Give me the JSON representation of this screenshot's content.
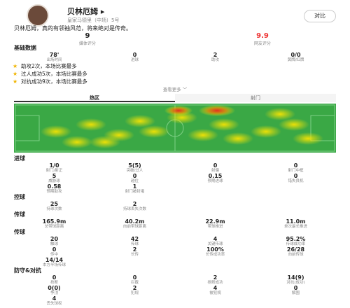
{
  "header": {
    "name": "贝林厄姆 ▸",
    "subtitle": "皇家马德里（中场）5号",
    "compare": "对比",
    "quote": "贝林厄姆，真的有领袖风范，将来绝对是传奇。"
  },
  "ratings": [
    {
      "value": "9",
      "label": "媒体评分"
    },
    {
      "value": "9.9",
      "label": "网友评分"
    }
  ],
  "basic": {
    "title": "基础数据",
    "stats": [
      {
        "value": "78'",
        "label": "出场时间"
      },
      {
        "value": "0",
        "label": "进球"
      },
      {
        "value": "2",
        "label": "助攻"
      },
      {
        "value": "0/0",
        "label": "黄牌/红牌"
      }
    ]
  },
  "highlights": [
    "助攻2次，本场比赛最多",
    "过人成功5次，本场比赛最多",
    "对抗成功9次，本场比赛最多"
  ],
  "more": "查看更多 ﹀",
  "tabs": [
    "热区",
    "射门"
  ],
  "sections": [
    {
      "title": "进球",
      "stats": [
        {
          "value": "1/0",
          "label": "射门/射正"
        },
        {
          "value": "5(5)",
          "label": "突破/过人"
        },
        {
          "value": "0",
          "label": "射偏"
        },
        {
          "value": "0",
          "label": "射门中框"
        },
        {
          "value": "5",
          "label": "威胁球"
        },
        {
          "value": "0",
          "label": "越位"
        },
        {
          "value": "0.15",
          "label": "预期进球"
        },
        {
          "value": "0",
          "label": "错失良机"
        },
        {
          "value": "0.58",
          "label": "预期助攻"
        },
        {
          "value": "1",
          "label": "射门被封堵"
        }
      ]
    },
    {
      "title": "控球",
      "stats": [
        {
          "value": "25",
          "label": "持球次数"
        },
        {
          "value": "2",
          "label": "持球丢失次数"
        }
      ]
    },
    {
      "title": "传球",
      "stats": [
        {
          "value": "165.9m",
          "label": "总带球距离"
        },
        {
          "value": "40.2m",
          "label": "向前带球距离"
        },
        {
          "value": "22.9m",
          "label": "带球推进"
        },
        {
          "value": "11.0m",
          "label": "单次最长推进"
        }
      ]
    },
    {
      "title": "传球",
      "stats": [
        {
          "value": "20",
          "label": "触球"
        },
        {
          "value": "42",
          "label": "传球"
        },
        {
          "value": "4",
          "label": "关键传球"
        },
        {
          "value": "95.2%",
          "label": "传球成功率"
        },
        {
          "value": "0",
          "label": "传中"
        },
        {
          "value": "2",
          "label": "长传"
        },
        {
          "value": "100%",
          "label": "长传成功率"
        },
        {
          "value": "26/28",
          "label": "向前传球"
        },
        {
          "value": "14/14",
          "label": "本方半场传球"
        }
      ]
    },
    {
      "title": "防守&对抗",
      "stats": [
        {
          "value": "0",
          "label": "抢断"
        },
        {
          "value": "0",
          "label": "拦截"
        },
        {
          "value": "2",
          "label": "抢断成功"
        },
        {
          "value": "14(9)",
          "label": "对抗(成功)"
        },
        {
          "value": "0(0)",
          "label": "争顶"
        },
        {
          "value": "2",
          "label": "犯规"
        },
        {
          "value": "4",
          "label": "被犯规"
        },
        {
          "value": "0",
          "label": "解围"
        },
        {
          "value": "4",
          "label": "丢失球权"
        }
      ]
    }
  ]
}
